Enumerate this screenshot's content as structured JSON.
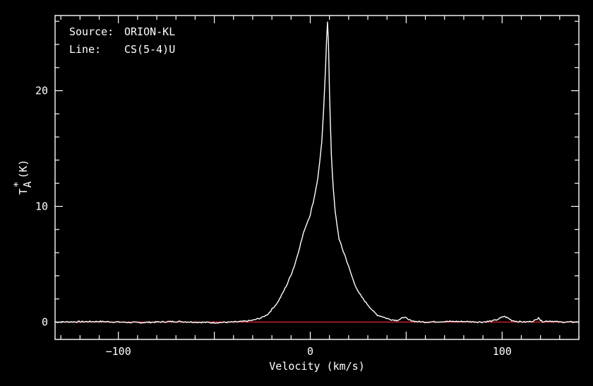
{
  "chart_data": {
    "type": "line",
    "annotations": {
      "source_label": "Source:",
      "source_value": "ORION-KL",
      "line_label": "Line:",
      "line_value": "CS(5-4)U"
    },
    "xlabel": "Velocity (km/s)",
    "ylabel_base": "T",
    "ylabel_sup": "*",
    "ylabel_sub": "A",
    "ylabel_unit": "(K)",
    "xlim": [
      -133,
      140
    ],
    "ylim": [
      -1.5,
      26.5
    ],
    "xticks": [
      -100,
      0,
      100
    ],
    "xtick_labels": [
      "−100",
      "0",
      "100"
    ],
    "yticks": [
      0,
      10,
      20
    ],
    "ytick_labels": [
      "0",
      "10",
      "20"
    ],
    "baseline": 0,
    "baseline_color": "#e0262a",
    "series": [
      {
        "color": "#ffffff",
        "x": [
          -133,
          -110,
          -90,
          -70,
          -50,
          -40,
          -35,
          -30,
          -25,
          -22,
          -20,
          -17,
          -15,
          -12,
          -10,
          -8,
          -5,
          -3,
          0,
          2,
          4,
          6,
          7,
          8,
          8.5,
          9,
          9.5,
          10,
          11,
          12,
          13,
          15,
          17,
          18,
          20,
          22,
          25,
          28,
          30,
          33,
          35,
          38,
          40,
          43,
          45,
          47,
          49,
          51,
          55,
          60,
          70,
          80,
          90,
          95,
          98,
          101,
          103,
          105,
          108,
          112,
          115,
          118,
          119,
          120,
          121,
          125,
          130,
          140
        ],
        "y": [
          0,
          0.05,
          -0.05,
          0.05,
          -0.05,
          0,
          0.05,
          0.15,
          0.4,
          0.7,
          1.1,
          1.7,
          2.3,
          3.3,
          4.1,
          5.0,
          6.8,
          8.0,
          9.3,
          10.7,
          12.5,
          15.5,
          18.5,
          22.0,
          24.5,
          26.0,
          24.0,
          20.0,
          14.5,
          11.5,
          9.5,
          7.2,
          6.2,
          5.8,
          4.8,
          3.8,
          2.6,
          1.9,
          1.5,
          0.9,
          0.6,
          0.45,
          0.3,
          0.2,
          0.15,
          0.25,
          0.45,
          0.2,
          0.05,
          0.0,
          0.05,
          0.05,
          0.0,
          0.1,
          0.25,
          0.5,
          0.35,
          0.15,
          0.05,
          0.0,
          0.05,
          0.2,
          0.45,
          0.15,
          0.05,
          0.1,
          0.0,
          0.0
        ]
      }
    ]
  }
}
